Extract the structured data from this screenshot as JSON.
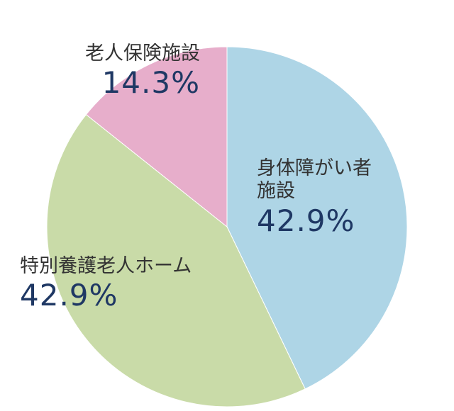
{
  "chart_data": {
    "type": "pie",
    "categories": [
      "身体障がい者施設",
      "特別養護老人ホーム",
      "老人保険施設"
    ],
    "values": [
      42.9,
      42.9,
      14.3
    ],
    "value_labels": [
      "42.9%",
      "42.9%",
      "14.3%"
    ],
    "colors": [
      "#aed5e6",
      "#c9dba8",
      "#e7aecb"
    ]
  }
}
